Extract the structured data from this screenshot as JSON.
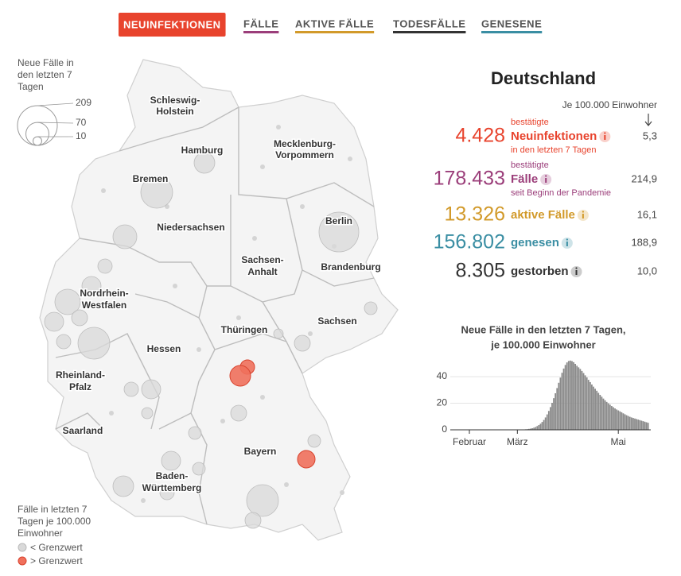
{
  "tabs": [
    {
      "label": "NEUINFEKTIONEN",
      "color": "#e8432d",
      "active": true
    },
    {
      "label": "FÄLLE",
      "color": "#9b3e7a"
    },
    {
      "label": "AKTIVE FÄLLE",
      "color": "#d29a2a"
    },
    {
      "label": "TODESFÄLLE",
      "color": "#333333"
    },
    {
      "label": "GENESENE",
      "color": "#3a8ea3"
    }
  ],
  "map": {
    "legend_title": [
      "Neue Fälle in",
      "den letzten 7",
      "Tagen"
    ],
    "legend_sizes": [
      209,
      70,
      10
    ],
    "states": [
      [
        "Schleswig-",
        "Holstein"
      ],
      [
        "Hamburg"
      ],
      [
        "Mecklenburg-",
        "Vorpommern"
      ],
      [
        "Bremen"
      ],
      [
        "Berlin"
      ],
      [
        "Niedersachsen"
      ],
      [
        "Sachsen-",
        "Anhalt"
      ],
      [
        "Brandenburg"
      ],
      [
        "Nordrhein-",
        "Westfalen"
      ],
      [
        "Sachsen"
      ],
      [
        "Thüringen"
      ],
      [
        "Hessen"
      ],
      [
        "Rheinland-",
        "Pfalz"
      ],
      [
        "Saarland"
      ],
      [
        "Bayern"
      ],
      [
        "Baden-",
        "Württemberg"
      ]
    ],
    "threshold_title": [
      "Fälle in letzten 7",
      "Tagen je 100.000",
      "Einwohner"
    ],
    "threshold_items": [
      "< Grenzwert",
      "> Grenzwert"
    ]
  },
  "stats": {
    "title": "Deutschland",
    "per_capita_header": "Je 100.000 Einwohner",
    "rows": [
      {
        "value": "4.428",
        "pre": "bestätigte",
        "label": "Neuinfektionen",
        "post": "in den letzten 7 Tagen",
        "per_capita": "5,3",
        "color": "#e8432d"
      },
      {
        "value": "178.433",
        "pre": "bestätigte",
        "label": "Fälle",
        "post": "seit Beginn der Pandemie",
        "per_capita": "214,9",
        "color": "#9b3e7a"
      },
      {
        "value": "13.326",
        "label": "aktive Fälle",
        "per_capita": "16,1",
        "color": "#d29a2a"
      },
      {
        "value": "156.802",
        "label": "genesen",
        "per_capita": "188,9",
        "color": "#3a8ea3"
      },
      {
        "value": "8.305",
        "label": "gestorben",
        "per_capita": "10,0",
        "color": "#333333"
      }
    ]
  },
  "chart_data": {
    "type": "bar",
    "title": [
      "Neue Fälle in den letzten 7 Tagen,",
      "je 100.000 Einwohner"
    ],
    "categories": [
      "Februar",
      null,
      null,
      null,
      null,
      null,
      null,
      null,
      null,
      null,
      null,
      null,
      null,
      null,
      null,
      null,
      null,
      null,
      null,
      null,
      null,
      null,
      null,
      null,
      null,
      null,
      null,
      null,
      null,
      "März",
      null,
      null,
      null,
      null,
      null,
      null,
      null,
      null,
      null,
      null,
      null,
      null,
      null,
      null,
      null,
      null,
      null,
      null,
      null,
      null,
      null,
      null,
      null,
      null,
      null,
      null,
      null,
      null,
      null,
      null,
      null,
      null,
      null,
      null,
      null,
      null,
      null,
      null,
      null,
      null,
      null,
      null,
      null,
      null,
      null,
      null,
      null,
      null,
      null,
      null,
      null,
      null,
      null,
      null,
      null,
      null,
      null,
      null,
      null,
      null,
      "Mai",
      null,
      null,
      null,
      null,
      null,
      null,
      null,
      null,
      null,
      null,
      null,
      null,
      null,
      null,
      null,
      null,
      null,
      null
    ],
    "values": [
      0,
      0,
      0,
      0,
      0,
      0,
      0,
      0,
      0,
      0,
      0,
      0,
      0,
      0,
      0,
      0,
      0,
      0,
      0,
      0,
      0,
      0,
      0,
      0,
      0,
      0,
      0,
      0,
      0,
      0.1,
      0.1,
      0.2,
      0.2,
      0.3,
      0.4,
      0.5,
      0.7,
      0.9,
      1.2,
      1.6,
      2.1,
      2.8,
      3.6,
      4.6,
      5.9,
      7.4,
      9.3,
      11.6,
      14.2,
      17.1,
      20.3,
      23.8,
      27.5,
      31.4,
      35.4,
      39.3,
      42.9,
      46.1,
      48.8,
      50.7,
      51.8,
      52.1,
      51.7,
      50.9,
      49.6,
      48.2,
      47.0,
      45.8,
      44.3,
      42.7,
      41.0,
      39.4,
      37.6,
      35.9,
      34.1,
      32.5,
      30.9,
      29.4,
      27.8,
      26.3,
      24.9,
      23.5,
      22.2,
      21.0,
      19.9,
      18.9,
      17.9,
      17.0,
      16.1,
      15.3,
      14.6,
      13.9,
      13.2,
      12.4,
      11.7,
      11.0,
      10.4,
      9.8,
      9.3,
      8.9,
      8.5,
      8.1,
      7.7,
      7.3,
      6.9,
      6.5,
      6.1,
      5.7,
      5.3
    ],
    "color": "#8a8a8a",
    "ylim": [
      0,
      52
    ],
    "yticks": [
      0,
      20,
      40
    ]
  }
}
